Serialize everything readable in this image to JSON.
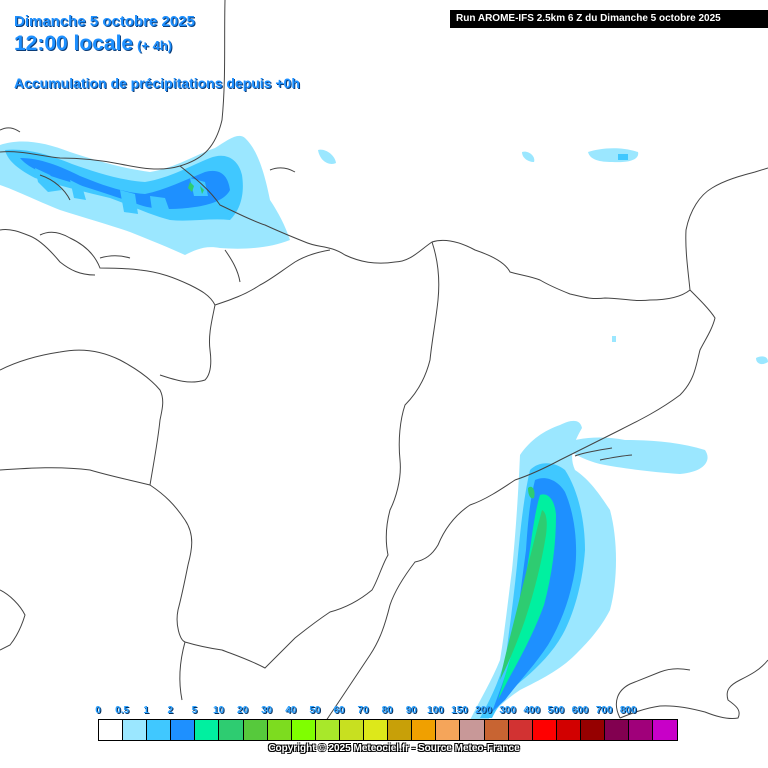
{
  "header": {
    "date": "Dimanche 5 octobre 2025",
    "time": "12:00 locale",
    "lead": "(+ 4h)",
    "subtitle": "Accumulation de précipitations depuis +0h"
  },
  "run_banner": "Run AROME-IFS 2.5km 6 Z du Dimanche 5 octobre 2025",
  "legend": {
    "labels": [
      "0",
      "0.5",
      "1",
      "2",
      "5",
      "10",
      "20",
      "30",
      "40",
      "50",
      "60",
      "70",
      "80",
      "90",
      "100",
      "150",
      "200",
      "300",
      "400",
      "500",
      "600",
      "700",
      "800"
    ],
    "colors": [
      "#ffffff",
      "#9be7ff",
      "#40c8ff",
      "#1e90ff",
      "#00f0a0",
      "#2ecc71",
      "#56c93c",
      "#7ddc1f",
      "#7fff00",
      "#a8e82a",
      "#c8e020",
      "#dde81a",
      "#c8a008",
      "#f0a000",
      "#f5a55a",
      "#c89898",
      "#c86432",
      "#d23232",
      "#ff0000",
      "#d20000",
      "#960000",
      "#820050",
      "#a0007a",
      "#c800c8"
    ]
  },
  "copyright": "Copyright © 2025 Meteociel.fr - Source Meteo-France"
}
